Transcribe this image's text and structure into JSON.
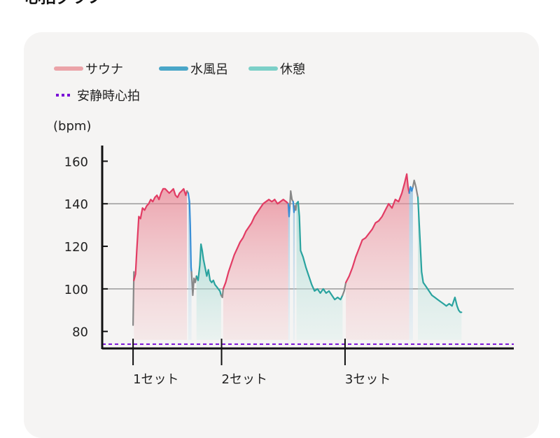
{
  "page": {
    "title": "心拍グラフ"
  },
  "chart_data": {
    "type": "line",
    "title": "",
    "ylabel": "(bpm)",
    "xlabel": "",
    "ylim": [
      72,
      170
    ],
    "yticks": [
      80,
      100,
      120,
      140,
      160
    ],
    "gridlines": [
      100,
      140
    ],
    "grid": true,
    "legend": "top-left",
    "colors": {
      "sauna": "#e23c64",
      "cold_bath": "#3a8fd6",
      "rest": "#2aa39f",
      "transition": "#888888",
      "resting": "#7a10d6"
    },
    "legend_items": [
      {
        "key": "sauna",
        "label": "サウナ",
        "color": "#eba3a8",
        "style": "solid"
      },
      {
        "key": "cold_bath",
        "label": "水風呂",
        "color": "#4aa6c8",
        "style": "solid"
      },
      {
        "key": "rest",
        "label": "休憩",
        "color": "#7cd0c8",
        "style": "solid"
      },
      {
        "key": "resting",
        "label": "安静時心拍",
        "color": "#7a10d6",
        "style": "dotted"
      }
    ],
    "resting_hr": 74,
    "x_domain": [
      0,
      100
    ],
    "set_markers": [
      {
        "x": 7.5,
        "label": "1セット"
      },
      {
        "x": 29.0,
        "label": "2セット"
      },
      {
        "x": 59.0,
        "label": "3セット"
      }
    ],
    "series": [
      {
        "phase": "transition",
        "points": [
          [
            7.5,
            83
          ],
          [
            7.6,
            96
          ],
          [
            7.7,
            108
          ]
        ]
      },
      {
        "phase": "sauna",
        "points": [
          [
            7.7,
            104
          ],
          [
            8.1,
            107
          ],
          [
            8.4,
            118
          ],
          [
            8.9,
            134
          ],
          [
            9.3,
            133
          ],
          [
            9.8,
            138
          ],
          [
            10.3,
            137
          ],
          [
            10.8,
            139
          ],
          [
            11.3,
            140
          ],
          [
            11.8,
            142
          ],
          [
            12.3,
            141
          ],
          [
            12.8,
            143
          ],
          [
            13.3,
            144
          ],
          [
            13.8,
            142
          ],
          [
            14.3,
            145
          ],
          [
            14.8,
            147
          ],
          [
            15.3,
            147
          ],
          [
            15.8,
            146
          ],
          [
            16.3,
            145
          ],
          [
            16.8,
            146
          ],
          [
            17.3,
            147
          ],
          [
            17.8,
            144
          ],
          [
            18.3,
            143
          ],
          [
            18.8,
            145
          ],
          [
            19.3,
            146
          ],
          [
            19.8,
            147
          ],
          [
            20.3,
            144
          ],
          [
            20.6,
            146
          ]
        ]
      },
      {
        "phase": "transition",
        "points": [
          [
            20.6,
            146
          ],
          [
            20.9,
            145
          ]
        ]
      },
      {
        "phase": "cold_bath",
        "points": [
          [
            20.9,
            145
          ],
          [
            21.2,
            141
          ],
          [
            21.4,
            130
          ],
          [
            21.6,
            110
          ],
          [
            21.7,
            108
          ]
        ]
      },
      {
        "phase": "transition",
        "points": [
          [
            21.7,
            108
          ],
          [
            22.0,
            97
          ],
          [
            22.3,
            105
          ],
          [
            22.6,
            103
          ],
          [
            22.9,
            106
          ]
        ]
      },
      {
        "phase": "rest",
        "points": [
          [
            22.9,
            106
          ],
          [
            23.3,
            104
          ],
          [
            23.7,
            111
          ],
          [
            24.0,
            121
          ],
          [
            24.3,
            118
          ],
          [
            24.6,
            114
          ],
          [
            25.0,
            110
          ],
          [
            25.4,
            106
          ],
          [
            25.8,
            109
          ],
          [
            26.2,
            104
          ],
          [
            26.6,
            103
          ],
          [
            27.0,
            104
          ],
          [
            27.4,
            102
          ],
          [
            27.8,
            101
          ],
          [
            28.2,
            100
          ],
          [
            28.6,
            99
          ],
          [
            28.9,
            97
          ]
        ]
      },
      {
        "phase": "transition",
        "points": [
          [
            28.9,
            97
          ],
          [
            29.2,
            96
          ],
          [
            29.4,
            100
          ]
        ]
      },
      {
        "phase": "sauna",
        "points": [
          [
            29.4,
            100
          ],
          [
            30.0,
            103
          ],
          [
            30.7,
            108
          ],
          [
            31.4,
            112
          ],
          [
            32.1,
            116
          ],
          [
            32.8,
            119
          ],
          [
            33.5,
            122
          ],
          [
            34.2,
            124
          ],
          [
            34.9,
            127
          ],
          [
            35.6,
            129
          ],
          [
            36.3,
            131
          ],
          [
            37.0,
            134
          ],
          [
            37.7,
            136
          ],
          [
            38.4,
            138
          ],
          [
            39.1,
            140
          ],
          [
            39.8,
            141
          ],
          [
            40.5,
            142
          ],
          [
            41.2,
            141
          ],
          [
            41.9,
            142
          ],
          [
            42.6,
            140
          ],
          [
            43.3,
            141
          ],
          [
            44.0,
            142
          ],
          [
            44.7,
            141
          ],
          [
            45.2,
            140
          ]
        ]
      },
      {
        "phase": "cold_bath",
        "points": [
          [
            45.2,
            140
          ],
          [
            45.4,
            134
          ],
          [
            45.6,
            139
          ]
        ]
      },
      {
        "phase": "transition",
        "points": [
          [
            45.6,
            139
          ],
          [
            45.8,
            146
          ],
          [
            46.1,
            142
          ],
          [
            46.4,
            141
          ]
        ]
      },
      {
        "phase": "cold_bath",
        "points": [
          [
            46.4,
            141
          ],
          [
            46.6,
            136
          ],
          [
            46.8,
            139
          ]
        ]
      },
      {
        "phase": "transition",
        "points": [
          [
            46.8,
            139
          ],
          [
            47.0,
            137
          ],
          [
            47.2,
            140
          ]
        ]
      },
      {
        "phase": "rest",
        "points": [
          [
            47.2,
            140
          ],
          [
            47.6,
            141
          ],
          [
            47.9,
            134
          ],
          [
            48.2,
            118
          ],
          [
            48.8,
            115
          ],
          [
            49.5,
            110
          ],
          [
            50.2,
            106
          ],
          [
            50.9,
            102
          ],
          [
            51.6,
            99
          ],
          [
            52.3,
            100
          ],
          [
            53.0,
            98
          ],
          [
            53.7,
            100
          ],
          [
            54.4,
            98
          ],
          [
            55.1,
            99
          ],
          [
            55.8,
            97
          ],
          [
            56.5,
            95
          ],
          [
            57.2,
            96
          ],
          [
            57.9,
            95
          ],
          [
            58.4,
            97
          ]
        ]
      },
      {
        "phase": "transition",
        "points": [
          [
            58.4,
            97
          ],
          [
            58.8,
            99
          ],
          [
            59.2,
            103
          ]
        ]
      },
      {
        "phase": "sauna",
        "points": [
          [
            59.2,
            103
          ],
          [
            60.0,
            106
          ],
          [
            60.8,
            110
          ],
          [
            61.6,
            115
          ],
          [
            62.4,
            119
          ],
          [
            63.2,
            123
          ],
          [
            64.0,
            124
          ],
          [
            64.8,
            126
          ],
          [
            65.6,
            128
          ],
          [
            66.4,
            131
          ],
          [
            67.2,
            132
          ],
          [
            68.0,
            134
          ],
          [
            68.8,
            137
          ],
          [
            69.6,
            140
          ],
          [
            70.4,
            138
          ],
          [
            71.2,
            142
          ],
          [
            72.0,
            141
          ],
          [
            72.8,
            145
          ],
          [
            73.5,
            150
          ],
          [
            74.0,
            154
          ],
          [
            74.3,
            148
          ],
          [
            74.6,
            145
          ]
        ]
      },
      {
        "phase": "cold_bath",
        "points": [
          [
            74.6,
            145
          ],
          [
            74.9,
            148
          ],
          [
            75.2,
            146
          ],
          [
            75.5,
            148
          ]
        ]
      },
      {
        "phase": "transition",
        "points": [
          [
            75.5,
            148
          ],
          [
            75.8,
            151
          ],
          [
            76.2,
            148
          ],
          [
            76.5,
            145
          ],
          [
            76.7,
            143
          ]
        ]
      },
      {
        "phase": "rest",
        "points": [
          [
            76.7,
            143
          ],
          [
            77.0,
            131
          ],
          [
            77.3,
            120
          ],
          [
            77.6,
            108
          ],
          [
            78.0,
            103
          ],
          [
            78.7,
            101
          ],
          [
            79.4,
            99
          ],
          [
            80.1,
            97
          ],
          [
            80.8,
            96
          ],
          [
            81.5,
            95
          ],
          [
            82.2,
            94
          ],
          [
            82.9,
            93
          ],
          [
            83.6,
            92
          ],
          [
            84.3,
            93
          ],
          [
            85.0,
            92
          ],
          [
            85.7,
            96
          ],
          [
            86.2,
            92
          ],
          [
            86.6,
            90
          ],
          [
            87.0,
            89
          ],
          [
            87.3,
            89
          ]
        ]
      }
    ]
  }
}
